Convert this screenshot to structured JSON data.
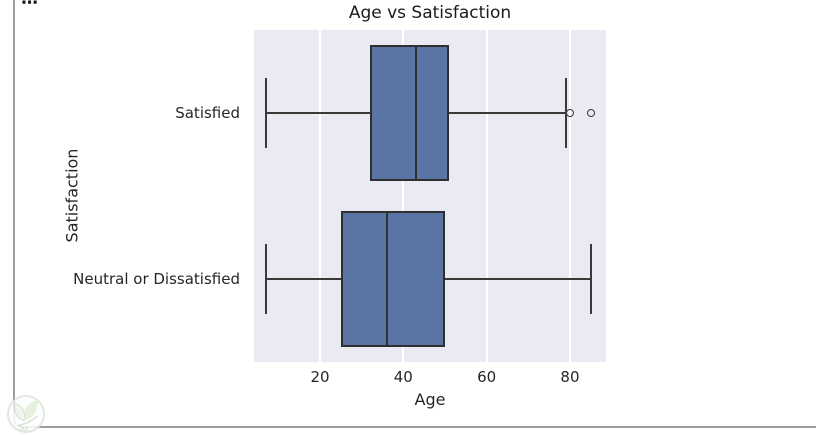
{
  "cell": {
    "icons": {
      "more_options": "⋯"
    }
  },
  "chart_data": {
    "type": "boxplot",
    "orientation": "horizontal",
    "title": "Age vs Satisfaction",
    "xlabel": "Age",
    "ylabel": "Satisfaction",
    "xlim": [
      4.16,
      88.65
    ],
    "xticks": [
      20,
      40,
      60,
      80
    ],
    "categories": [
      "Satisfied",
      "Neutral or Dissatisfied"
    ],
    "series": [
      {
        "category": "Satisfied",
        "whisker_low": 7,
        "q1": 32,
        "median": 43,
        "q3": 51,
        "whisker_high": 79,
        "outliers": [
          80,
          85
        ]
      },
      {
        "category": "Neutral or Dissatisfied",
        "whisker_low": 7,
        "q1": 25,
        "median": 36,
        "q3": 50,
        "whisker_high": 85,
        "outliers": []
      }
    ],
    "style": {
      "box_fill": "#5875a4",
      "box_edge": "#2f2f2f",
      "line_color": "#3a3a3a",
      "plot_bg": "#eaeaf2",
      "grid_color": "#ffffff",
      "text_color": "#262626",
      "grid": "on",
      "legend": "none"
    }
  },
  "watermark": {
    "label": "IAS"
  }
}
